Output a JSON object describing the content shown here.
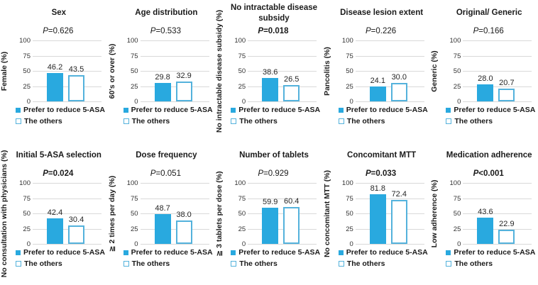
{
  "chart_data": {
    "type": "bar",
    "layout": "grid-2x5",
    "categories": [
      "Prefer to reduce 5-ASA",
      "The others"
    ],
    "ylim": [
      0,
      100
    ],
    "y_ticks": [
      100,
      75,
      50,
      25,
      0
    ],
    "grid": "horizontal-gridlines-on",
    "legend_position": "below-each-chart",
    "colors": {
      "bar_fill": "#29A9DF",
      "bar_outline": "#54B2DC",
      "gridline": "#D9D9D9",
      "text": "#1A1A1A"
    },
    "charts": [
      {
        "title": "Sex",
        "p": "P=0.626",
        "bold_p": false,
        "ylabel": "Female (%)",
        "values": [
          46.2,
          43.5
        ],
        "labels": [
          "46.2",
          "43.5"
        ]
      },
      {
        "title": "Age distribution",
        "p": "P=0.533",
        "bold_p": false,
        "ylabel": "60's or over (%)",
        "values": [
          29.8,
          32.9
        ],
        "labels": [
          "29.8",
          "32.9"
        ]
      },
      {
        "title": "No intractable disease subsidy",
        "p": "P=0.018",
        "bold_p": true,
        "ylabel": "No intractable disease subsidy (%)",
        "values": [
          38.6,
          26.5
        ],
        "labels": [
          "38.6",
          "26.5"
        ]
      },
      {
        "title": "Disease lesion extent",
        "p": "P=0.226",
        "bold_p": false,
        "ylabel": "Pancolitis (%)",
        "values": [
          24.1,
          30.0
        ],
        "labels": [
          "24.1",
          "30.0"
        ]
      },
      {
        "title": "Original/ Generic",
        "p": "P=0.166",
        "bold_p": false,
        "ylabel": "Generic (%)",
        "values": [
          28.0,
          20.7
        ],
        "labels": [
          "28.0",
          "20.7"
        ]
      },
      {
        "title": "Initial 5-ASA selection",
        "p": "P=0.024",
        "bold_p": true,
        "ylabel": "No consultation with physicians (%)",
        "values": [
          42.4,
          30.4
        ],
        "labels": [
          "42.4",
          "30.4"
        ]
      },
      {
        "title": "Dose frequency",
        "p": "P=0.051",
        "bold_p": false,
        "ylabel": "≧ 2 times per day (%)",
        "values": [
          48.7,
          38.0
        ],
        "labels": [
          "48.7",
          "38.0"
        ]
      },
      {
        "title": "Number of tablets",
        "p": "P=0.929",
        "bold_p": false,
        "ylabel": "≧ 3 tablets per dose (%)",
        "values": [
          59.9,
          60.4
        ],
        "labels": [
          "59.9",
          "60.4"
        ]
      },
      {
        "title": "Concomitant MTT",
        "p": "P=0.033",
        "bold_p": true,
        "ylabel": "No concomitant MTT (%)",
        "values": [
          81.8,
          72.4
        ],
        "labels": [
          "81.8",
          "72.4"
        ]
      },
      {
        "title": "Medication adherence",
        "p": "P<0.001",
        "bold_p": true,
        "ylabel": "Low adherence (%)",
        "values": [
          43.6,
          22.9
        ],
        "labels": [
          "43.6",
          "22.9"
        ]
      }
    ]
  }
}
